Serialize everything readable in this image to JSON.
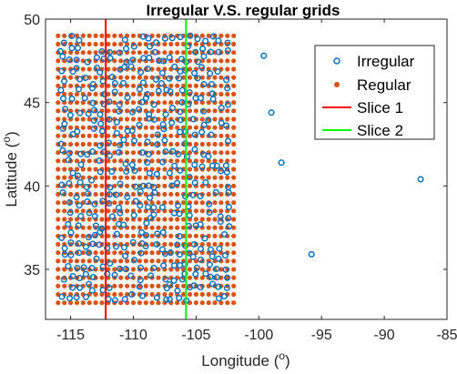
{
  "chart_data": {
    "type": "scatter",
    "title": "Irregular V.S. regular grids",
    "xlabel": "Longitude",
    "xlabel_unit": "o",
    "ylabel": "Latitude",
    "ylabel_unit": "o",
    "xlim": [
      -117,
      -85
    ],
    "ylim": [
      32,
      50
    ],
    "xticks": [
      -115,
      -110,
      -105,
      -100,
      -95,
      -90,
      -85
    ],
    "yticks": [
      35,
      40,
      45,
      50
    ],
    "grid": false,
    "legend_position": "top-right",
    "series": [
      {
        "name": "Irregular",
        "marker": "open-circle",
        "color": "#0072BD",
        "outliers": [
          [
            -99.6,
            47.8
          ],
          [
            -99.0,
            44.4
          ],
          [
            -98.2,
            41.4
          ],
          [
            -95.8,
            35.9
          ],
          [
            -87.1,
            40.4
          ]
        ]
      },
      {
        "name": "Regular",
        "marker": "filled-dot",
        "color": "#D95319",
        "x_range": [
          -116.0,
          -102.0
        ],
        "x_step": 0.5,
        "y_range": [
          33.0,
          49.0
        ],
        "y_step": 0.5
      },
      {
        "name": "Slice 1",
        "type": "vline",
        "color": "#FF0000",
        "x": -112.2
      },
      {
        "name": "Slice 2",
        "type": "vline",
        "color": "#00FF00",
        "x": -105.8
      }
    ]
  }
}
